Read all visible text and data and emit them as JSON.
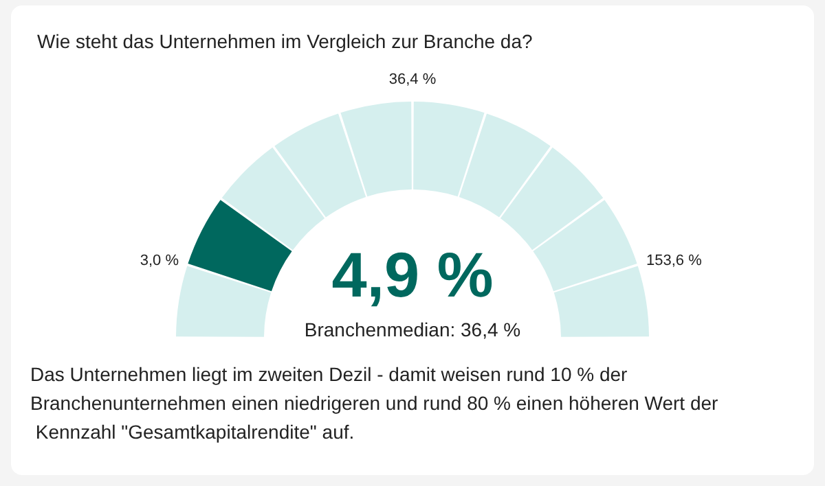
{
  "chart_data": {
    "type": "donut",
    "title": "Wie steht das Unternehmen im Vergleich zur Branche da?",
    "categories": [
      null,
      null,
      null,
      null,
      null,
      null,
      null,
      null,
      null,
      null
    ],
    "values": [
      10,
      10,
      10,
      10,
      10,
      10,
      10,
      10,
      10,
      10
    ],
    "colors": [
      "#d5efee",
      "#00685e",
      "#d5efee",
      "#d5efee",
      "#d5efee",
      "#d5efee",
      "#d5efee",
      "#d5efee",
      "#d5efee",
      "#d5efee"
    ],
    "annotations": [
      "3,0 %",
      "36,4 %",
      "153,6 %",
      "4,9 %",
      "Branchenmedian: 36,4 %",
      "Das Unternehmen liegt im zweiten Dezil - damit weisen rund 10 % der Branchenunternehmen einen niedrigeren und rund 80 % einen höheren Wert der Kennzahl \"Gesamtkapitalrendite\" auf."
    ]
  }
}
